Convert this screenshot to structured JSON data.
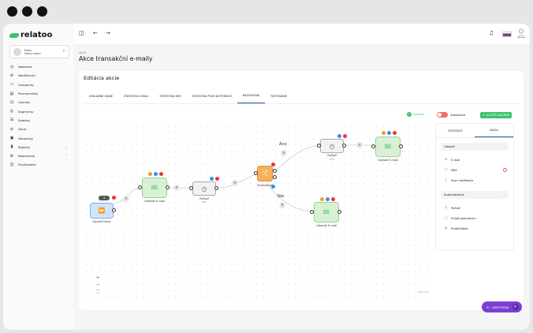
{
  "app": {
    "brand": "relatoo",
    "workspace_name": "Pokes",
    "workspace_sub": "Demo modul"
  },
  "sidebar": {
    "items": [
      {
        "label": "Nástenka",
        "icon": "dashboard-icon",
        "glyph": "◷"
      },
      {
        "label": "Návštevníci",
        "icon": "visitors-icon",
        "glyph": "✣"
      },
      {
        "label": "Vstupenky",
        "icon": "tickets-icon",
        "glyph": "▭"
      },
      {
        "label": "Permanentky",
        "icon": "passes-icon",
        "glyph": "▤"
      },
      {
        "label": "Cenníky",
        "icon": "pricing-icon",
        "glyph": "⊡"
      },
      {
        "label": "Segmenty",
        "icon": "segments-icon",
        "glyph": "◎"
      },
      {
        "label": "Šablóny",
        "icon": "templates-icon",
        "glyph": "☰"
      },
      {
        "label": "Akcie",
        "icon": "actions-icon",
        "glyph": "⇄"
      },
      {
        "label": "Dotazníky",
        "icon": "surveys-icon",
        "glyph": "▣"
      },
      {
        "label": "Reporty",
        "icon": "reports-icon",
        "glyph": "▮",
        "caret": "⌄"
      },
      {
        "label": "Nastavenia",
        "icon": "settings-icon",
        "glyph": "⚙",
        "caret": "⌃"
      },
      {
        "label": "Používatelia",
        "icon": "users-icon",
        "glyph": "☺"
      }
    ]
  },
  "page": {
    "breadcrumb": "AKCIA",
    "title": "Akce transakční e-maily"
  },
  "card": {
    "title": "Editácia akcie",
    "tabs": [
      "ZÁKLADNÉ ÚDAJE",
      "ŠTATISTIKA E-MAIL",
      "ŠTATISTIKA SMS",
      "ŠTATISTIKA PUSH NOTIFIKÁCIÍ",
      "NASTAVENIA",
      "TESTOVANIE"
    ],
    "active_tab": "NASTAVENIA"
  },
  "toolbar": {
    "saved": "Uložené",
    "stop": "Zastavené",
    "save_button": "ULOŽIŤ DIAGRAM"
  },
  "graph": {
    "start_count": "4",
    "start_label": "Spustiť teraz",
    "email1_label": "Odoslať E-mail",
    "wait1_label": "Počkať",
    "wait1_sub": "4H 5",
    "cond_label": "Podmienka",
    "yes_label": "Áno",
    "no_label": "Nie",
    "wait2_label": "Počkať",
    "wait2_sub": "4H 1",
    "email2_label": "Odoslať E-mail",
    "email3_label": "Odoslať E-mail",
    "zoom_in": "+",
    "zoom_out": "−",
    "fit": "⛶",
    "footer": "React Flow"
  },
  "panel": {
    "tabs": [
      "SPÚŠŤAČE",
      "AKCIA"
    ],
    "active_tab": "AKCIA",
    "send_section": "Odoslať",
    "send_items": [
      "E-mail",
      "SMS",
      "Push notifikácie"
    ],
    "auto_section": "Automatizácia",
    "auto_items": [
      "Počkať",
      "Pridať podmienku",
      "Pridať štítok"
    ]
  },
  "help": {
    "label": "NÁPOVEDA"
  },
  "colors": {
    "accent": "#3ec26a",
    "primary": "#2a4ea2",
    "help": "#7b3fd4",
    "danger": "#e33333"
  }
}
